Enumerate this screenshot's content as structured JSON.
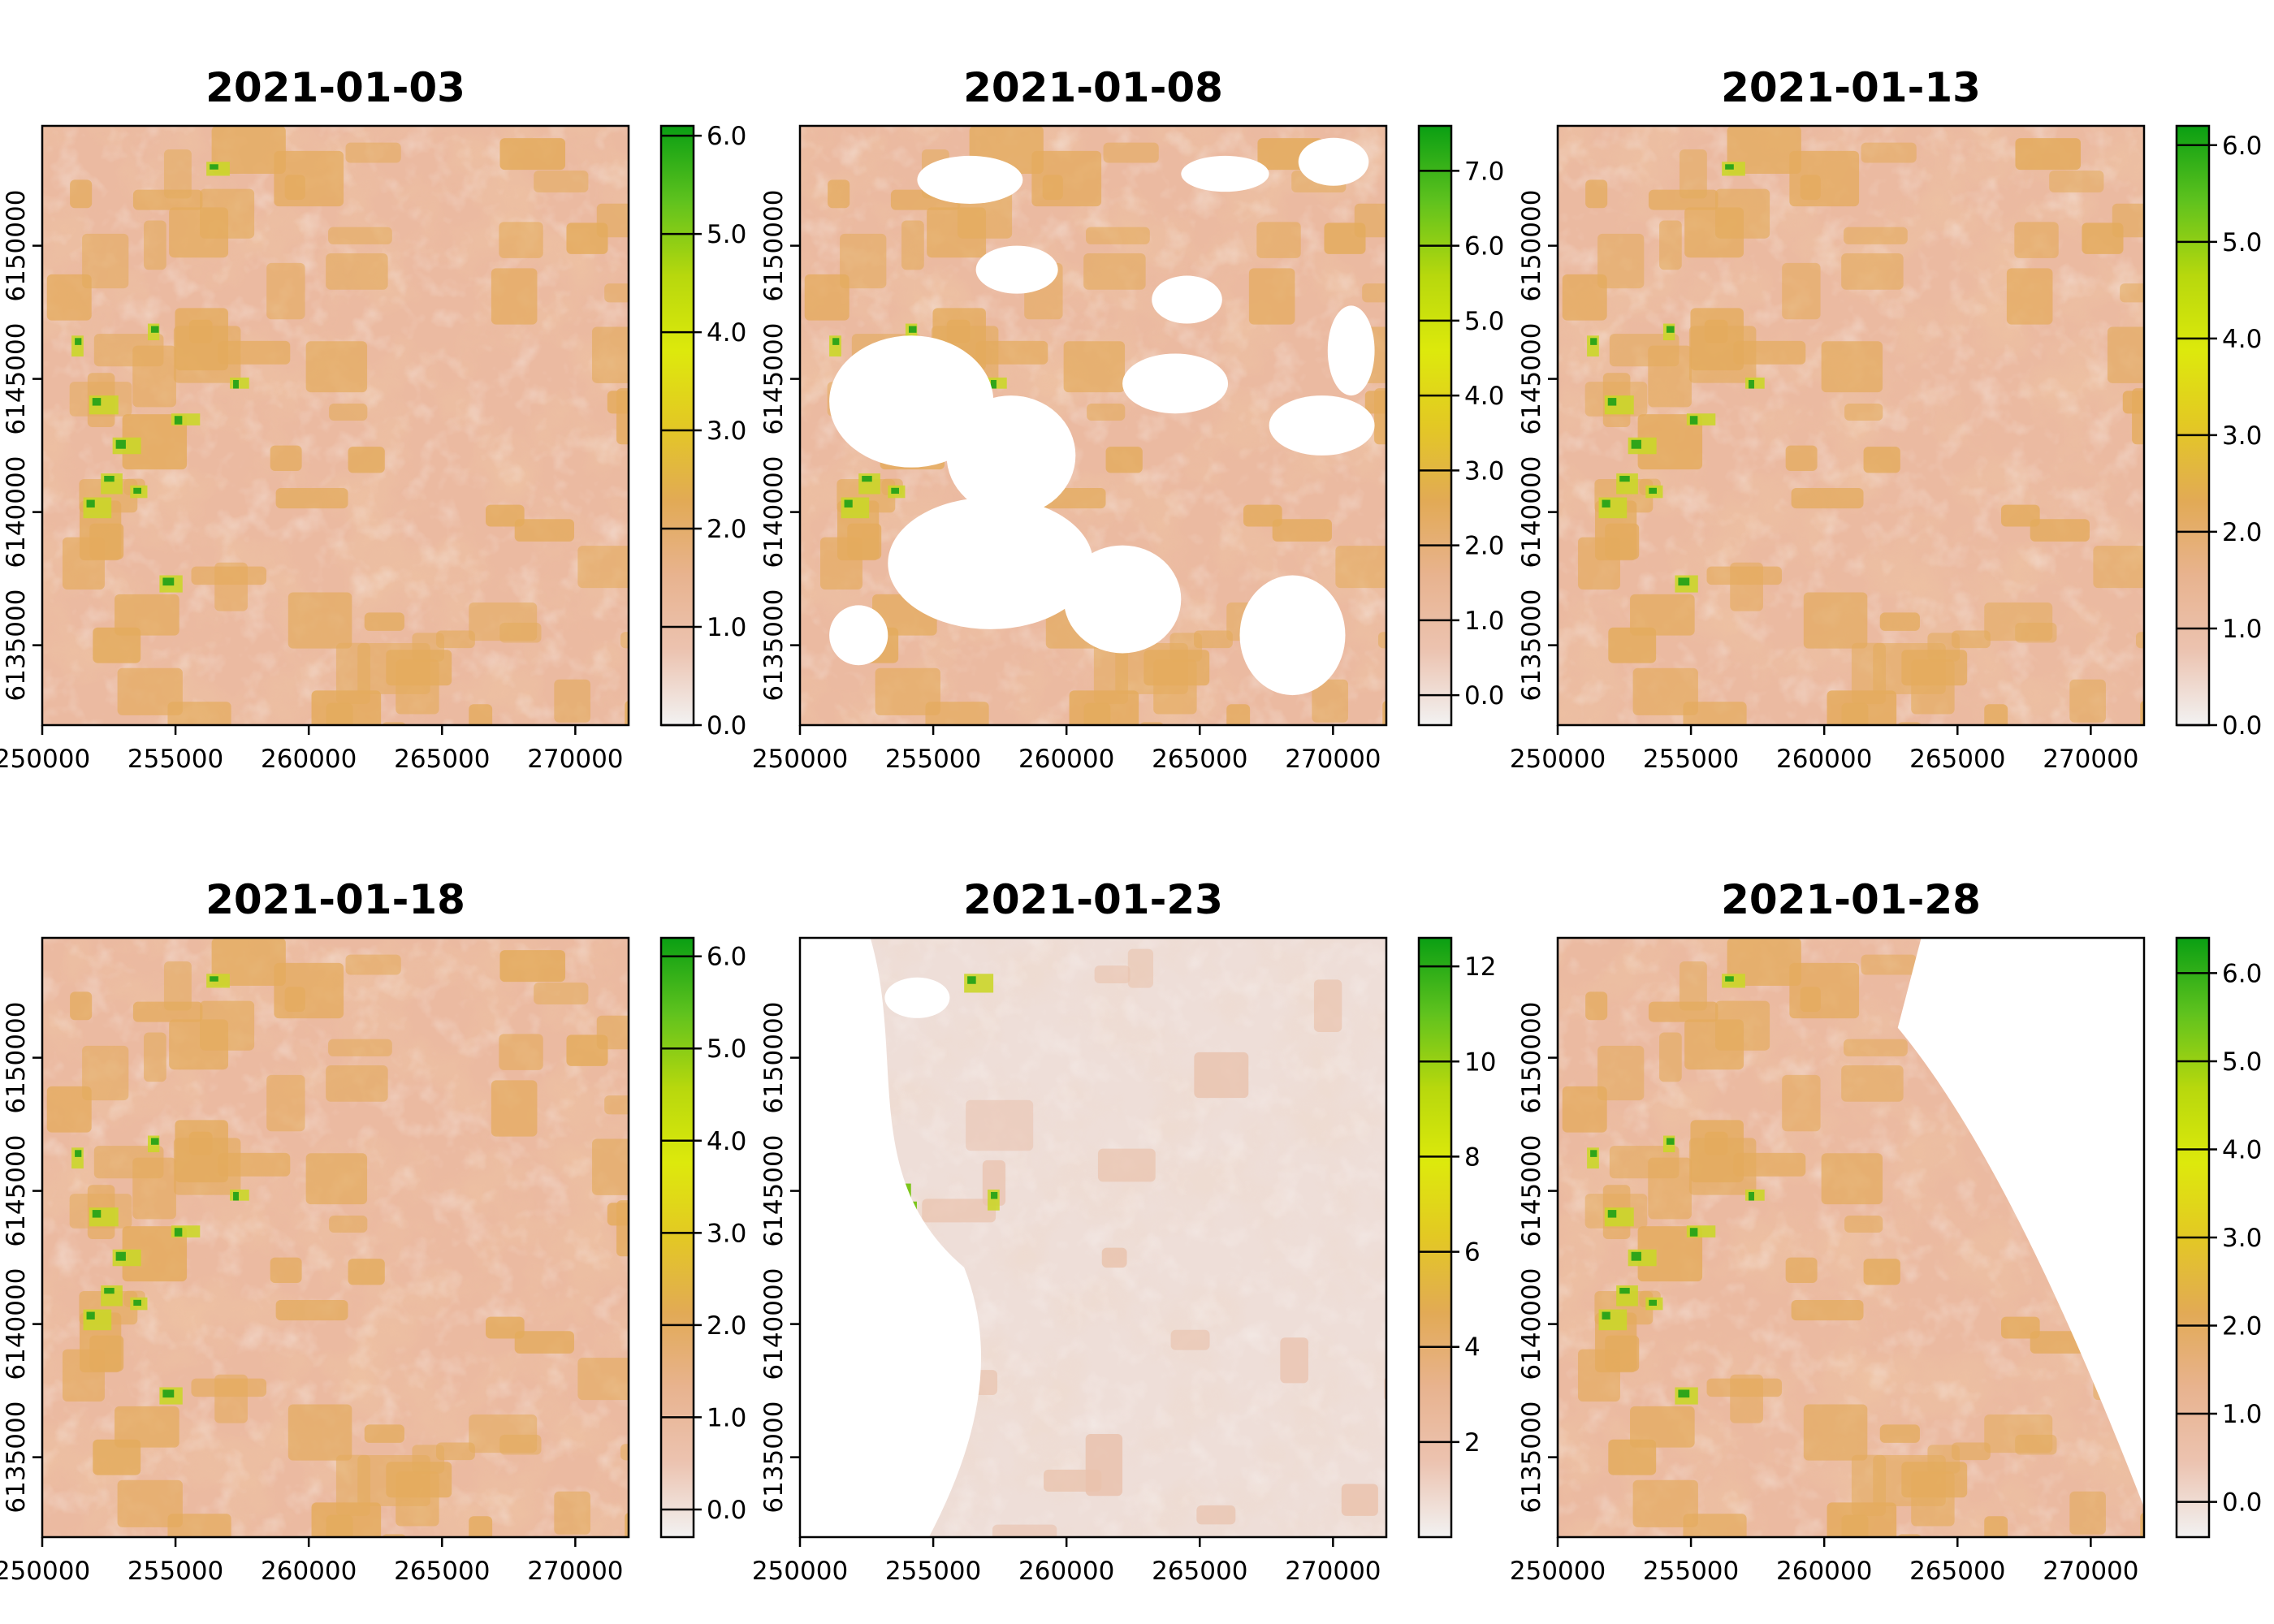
{
  "chart_data": [
    {
      "type": "heatmap",
      "title": "2021-01-03",
      "x_ticks": [
        "250000",
        "255000",
        "260000",
        "265000",
        "270000"
      ],
      "y_ticks": [
        "6135000",
        "6140000",
        "6145000",
        "6150000"
      ],
      "xlim": [
        250000,
        272000
      ],
      "ylim": [
        6132000,
        6154500
      ],
      "colorbar": {
        "range": [
          0,
          6.1
        ],
        "ticks": [
          "0.0",
          "1.0",
          "2.0",
          "3.0",
          "4.0",
          "5.0",
          "6.0"
        ]
      },
      "missing_data": "none"
    },
    {
      "type": "heatmap",
      "title": "2021-01-08",
      "x_ticks": [
        "250000",
        "255000",
        "260000",
        "265000",
        "270000"
      ],
      "y_ticks": [
        "6135000",
        "6140000",
        "6145000",
        "6150000"
      ],
      "xlim": [
        250000,
        272000
      ],
      "ylim": [
        6132000,
        6154500
      ],
      "colorbar": {
        "range": [
          -0.4,
          7.6
        ],
        "ticks": [
          "0.0",
          "1.0",
          "2.0",
          "3.0",
          "4.0",
          "5.0",
          "6.0",
          "7.0"
        ]
      },
      "missing_data": "scattered cloud gaps"
    },
    {
      "type": "heatmap",
      "title": "2021-01-13",
      "x_ticks": [
        "250000",
        "255000",
        "260000",
        "265000",
        "270000"
      ],
      "y_ticks": [
        "6135000",
        "6140000",
        "6145000",
        "6150000"
      ],
      "xlim": [
        250000,
        272000
      ],
      "ylim": [
        6132000,
        6154500
      ],
      "colorbar": {
        "range": [
          0,
          6.2
        ],
        "ticks": [
          "0.0",
          "1.0",
          "2.0",
          "3.0",
          "4.0",
          "5.0",
          "6.0"
        ]
      },
      "missing_data": "none"
    },
    {
      "type": "heatmap",
      "title": "2021-01-18",
      "x_ticks": [
        "250000",
        "255000",
        "260000",
        "265000",
        "270000"
      ],
      "y_ticks": [
        "6135000",
        "6140000",
        "6145000",
        "6150000"
      ],
      "xlim": [
        250000,
        272000
      ],
      "ylim": [
        6132000,
        6154500
      ],
      "colorbar": {
        "range": [
          -0.3,
          6.2
        ],
        "ticks": [
          "0.0",
          "1.0",
          "2.0",
          "3.0",
          "4.0",
          "5.0",
          "6.0"
        ]
      },
      "missing_data": "none"
    },
    {
      "type": "heatmap",
      "title": "2021-01-23",
      "x_ticks": [
        "250000",
        "255000",
        "260000",
        "265000",
        "270000"
      ],
      "y_ticks": [
        "6135000",
        "6140000",
        "6145000",
        "6150000"
      ],
      "xlim": [
        250000,
        272000
      ],
      "ylim": [
        6132000,
        6154500
      ],
      "colorbar": {
        "range": [
          0,
          12.6
        ],
        "ticks": [
          "2",
          "4",
          "6",
          "8",
          "10",
          "12"
        ]
      },
      "missing_data": "large gap in west"
    },
    {
      "type": "heatmap",
      "title": "2021-01-28",
      "x_ticks": [
        "250000",
        "255000",
        "260000",
        "265000",
        "270000"
      ],
      "y_ticks": [
        "6135000",
        "6140000",
        "6145000",
        "6150000"
      ],
      "xlim": [
        250000,
        272000
      ],
      "ylim": [
        6132000,
        6154500
      ],
      "colorbar": {
        "range": [
          -0.4,
          6.4
        ],
        "ticks": [
          "0.0",
          "1.0",
          "2.0",
          "3.0",
          "4.0",
          "5.0",
          "6.0"
        ]
      },
      "missing_data": "gap in north-east"
    }
  ],
  "palette": [
    "#f2f2f2",
    "#ecc3b0",
    "#e8b38f",
    "#e2aa55",
    "#e3c824",
    "#dde90c",
    "#b7d80d",
    "#5fc21e",
    "#0a9f13"
  ],
  "nodata_color": "#ffffff"
}
